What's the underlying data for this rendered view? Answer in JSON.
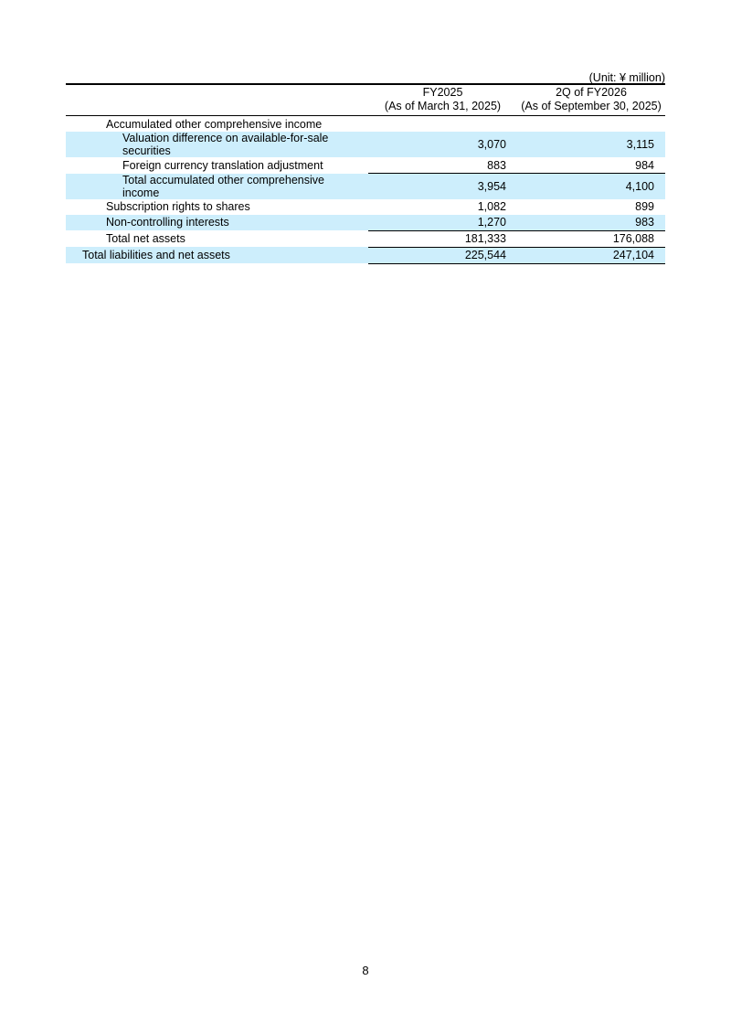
{
  "unit": "(Unit: ¥ million)",
  "columns": [
    {
      "line1": "FY2025",
      "line2": "(As of March 31, 2025)"
    },
    {
      "line1": "2Q of FY2026",
      "line2": "(As of September 30, 2025)"
    }
  ],
  "rows": [
    {
      "label": "Accumulated other comprehensive income",
      "fy2025": "",
      "q2fy2026": ""
    },
    {
      "label": "Valuation difference on available-for-sale securities",
      "fy2025": "3,070",
      "q2fy2026": "3,115"
    },
    {
      "label": "Foreign currency translation adjustment",
      "fy2025": "883",
      "q2fy2026": "984"
    },
    {
      "label": "Total accumulated other comprehensive income",
      "fy2025": "3,954",
      "q2fy2026": "4,100"
    },
    {
      "label": "Subscription rights to shares",
      "fy2025": "1,082",
      "q2fy2026": "899"
    },
    {
      "label": "Non-controlling interests",
      "fy2025": "1,270",
      "q2fy2026": "983"
    },
    {
      "label": "Total net assets",
      "fy2025": "181,333",
      "q2fy2026": "176,088"
    },
    {
      "label": "Total liabilities and net assets",
      "fy2025": "225,544",
      "q2fy2026": "247,104"
    }
  ],
  "highlight_color": "#cdeefc",
  "page_number": "8"
}
